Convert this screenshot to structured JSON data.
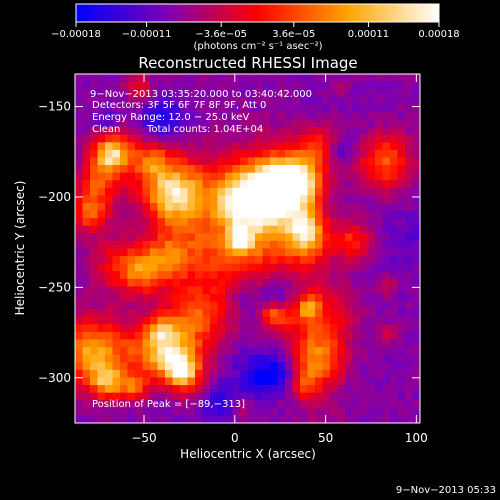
{
  "chart_data": {
    "type": "heatmap",
    "title": "Reconstructed RHESSI Image",
    "xlabel": "Heliocentric X (arcsec)",
    "ylabel": "Heliocentric Y (arcsec)",
    "xlim": [
      -88,
      102
    ],
    "ylim": [
      -325,
      -132
    ],
    "x_ticks": [
      {
        "v": -50,
        "label": "−50"
      },
      {
        "v": 0,
        "label": "0"
      },
      {
        "v": 50,
        "label": "50"
      },
      {
        "v": 100,
        "label": "100"
      }
    ],
    "y_ticks": [
      {
        "v": -150,
        "label": "−150"
      },
      {
        "v": -200,
        "label": "−200"
      },
      {
        "v": -250,
        "label": "−250"
      },
      {
        "v": -300,
        "label": "−300"
      }
    ],
    "colorbar": {
      "range": [
        -0.00018,
        0.00018
      ],
      "ticks": [
        {
          "v": -0.00018,
          "label": "−0.00018"
        },
        {
          "v": -0.00011,
          "label": "−0.00011"
        },
        {
          "v": -3.6e-05,
          "label": "−3.6e−05"
        },
        {
          "v": 3.6e-05,
          "label": "3.6e−05"
        },
        {
          "v": 0.00011,
          "label": "0.00011"
        },
        {
          "v": 0.00018,
          "label": "0.00018"
        }
      ],
      "unit_label": "(photons cm⁻² s⁻¹ asec⁻²)",
      "colors": [
        "#0000ff",
        "#7a00b4",
        "#ff0000",
        "#ffa500",
        "#ffffff"
      ]
    },
    "annotations": {
      "time_range": "9−Nov−2013 03:35:20.000 to 03:40:42.000",
      "detectors": "Detectors: 3F 5F 6F 7F 8F 9F, Att 0",
      "energy": "Energy Range: 12.0 − 25.0 keV",
      "clean": "Clean",
      "counts": "Total counts: 1.04E+04",
      "peak": "Position of Peak = [−89,−313]"
    },
    "timestamp": "9−Nov−2013 05:33"
  }
}
